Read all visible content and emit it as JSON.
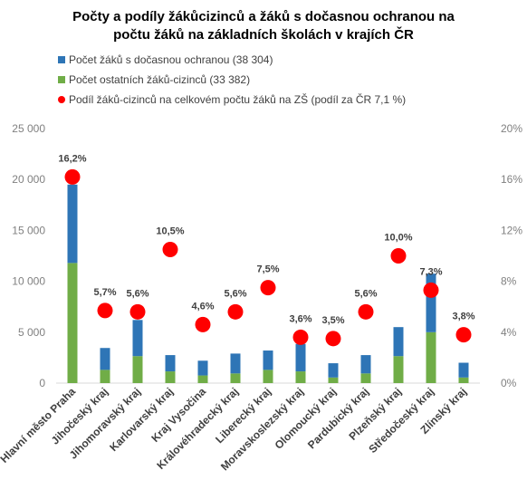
{
  "chart_data": {
    "type": "bar",
    "title_line1": "Počty a podíly žákůcizinců a žáků s dočasnou ochranou na",
    "title_line2": "počtu žáků na základních školách v krajích ČR",
    "categories": [
      "Hlavní město Praha",
      "Jihočeský kraj",
      "Jihomoravský kraj",
      "Karlovarský kraj",
      "Kraj Vysočina",
      "Královéhradecký kraj",
      "Liberecký kraj",
      "Moravskoslezský kraj",
      "Olomoucký kraj",
      "Pardubický kraj",
      "Plzeňský kraj",
      "Středočeský kraj",
      "Zlínský kraj"
    ],
    "series": [
      {
        "name": "Počet ostatních žáků-cizinců (33 382)",
        "color": "#70AD47",
        "values": [
          11800,
          1300,
          2650,
          1150,
          750,
          950,
          1300,
          1150,
          550,
          950,
          2650,
          5000,
          550
        ]
      },
      {
        "name": "Počet žáků s dočasnou ochranou (38 304)",
        "color": "#2E75B6",
        "values": [
          7700,
          2150,
          3550,
          1600,
          1450,
          1950,
          1900,
          2700,
          1400,
          1800,
          2850,
          5750,
          1450
        ]
      },
      {
        "name": "Podíl žáků-cizinců na celkovém počtu žáků na ZŠ (podíl za ČR 7,1 %)",
        "color": "#FF0000",
        "type": "scatter",
        "axis": "right",
        "values": [
          16.2,
          5.7,
          5.6,
          10.5,
          4.6,
          5.6,
          7.5,
          3.6,
          3.5,
          5.6,
          10.0,
          7.3,
          3.8
        ],
        "labels": [
          "16,2%",
          "5,7%",
          "5,6%",
          "10,5%",
          "4,6%",
          "5,6%",
          "7,5%",
          "3,6%",
          "3,5%",
          "5,6%",
          "10,0%",
          "7,3%",
          "3,8%"
        ]
      }
    ],
    "legend_order": [
      1,
      0,
      2
    ],
    "y_left": {
      "min": 0,
      "max": 25000,
      "ticks": [
        0,
        5000,
        10000,
        15000,
        20000,
        25000
      ],
      "tick_labels": [
        "0",
        "5 000",
        "10 000",
        "15 000",
        "20 000",
        "25 000"
      ]
    },
    "y_right": {
      "min": 0,
      "max": 20,
      "ticks": [
        0,
        4,
        8,
        12,
        16,
        20
      ],
      "tick_labels": [
        "0%",
        "4%",
        "8%",
        "12%",
        "16%",
        "20%"
      ]
    },
    "grid": false,
    "legend_position": "top-left"
  }
}
